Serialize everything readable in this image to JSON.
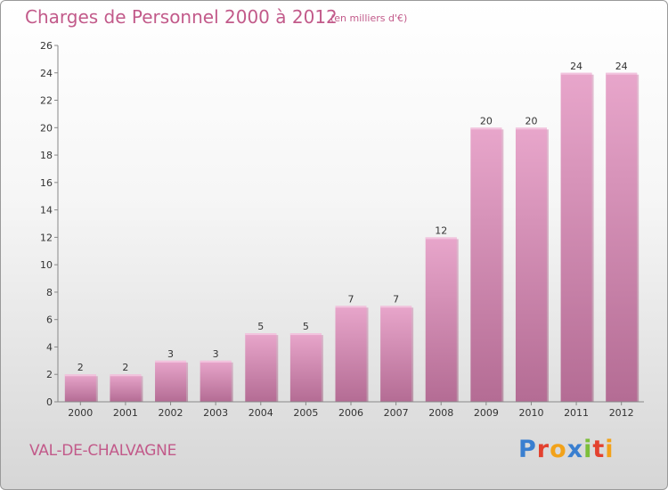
{
  "header": {
    "title": "Charges de Personnel 2000 à 2012",
    "unit": "(en milliers d'€)"
  },
  "footer": {
    "commune": "VAL-DE-CHALVAGNE",
    "logo_letters": [
      {
        "char": "P",
        "color": "#3a7fd0"
      },
      {
        "char": "r",
        "color": "#e3412f"
      },
      {
        "char": "o",
        "color": "#f2a21a"
      },
      {
        "char": "x",
        "color": "#3a7fd0"
      },
      {
        "char": "i",
        "color": "#7cbf3a"
      },
      {
        "char": "t",
        "color": "#e3412f"
      },
      {
        "char": "i",
        "color": "#f2a21a"
      }
    ]
  },
  "chart_data": {
    "type": "bar",
    "title": "Charges de Personnel 2000 à 2012",
    "subtitle": "(en milliers d'€)",
    "categories": [
      "2000",
      "2001",
      "2002",
      "2003",
      "2004",
      "2005",
      "2006",
      "2007",
      "2008",
      "2009",
      "2010",
      "2011",
      "2012"
    ],
    "values": [
      2,
      2,
      3,
      3,
      5,
      5,
      7,
      7,
      12,
      20,
      20,
      24,
      24
    ],
    "ylim": [
      0,
      26
    ],
    "yticks": [
      0,
      2,
      4,
      6,
      8,
      10,
      12,
      14,
      16,
      18,
      20,
      22,
      24,
      26
    ],
    "grid": false,
    "legend": "none",
    "bar_color": "#d98fb8",
    "bar_color_dark": "#b2678f",
    "text_color": "#c25a8a"
  }
}
